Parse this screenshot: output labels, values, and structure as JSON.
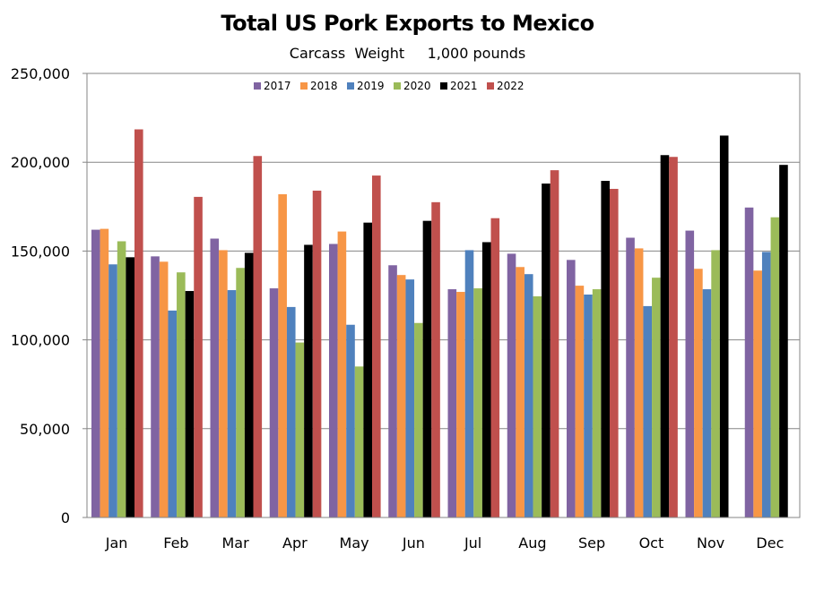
{
  "chart_data": {
    "type": "bar",
    "title": "Total US Pork Exports to Mexico",
    "subtitle": "Carcass  Weight     1,000 pounds",
    "xlabel": "",
    "ylabel": "",
    "ylim": [
      0,
      250000
    ],
    "y_ticks": [
      "0",
      "50,000",
      "100,000",
      "150,000",
      "200,000",
      "250,000"
    ],
    "y_tick_values": [
      0,
      50000,
      100000,
      150000,
      200000,
      250000
    ],
    "grid": true,
    "legend_position": "top-center",
    "categories": [
      "Jan",
      "Feb",
      "Mar",
      "Apr",
      "May",
      "Jun",
      "Jul",
      "Aug",
      "Sep",
      "Oct",
      "Nov",
      "Dec"
    ],
    "series": [
      {
        "name": "2017",
        "color": "#8064a2",
        "values": [
          162000,
          147000,
          157000,
          129000,
          154000,
          142000,
          128500,
          148500,
          145000,
          157500,
          161500,
          174500
        ]
      },
      {
        "name": "2018",
        "color": "#f79646",
        "values": [
          162500,
          144000,
          150500,
          182000,
          161000,
          136500,
          127000,
          141000,
          130500,
          151500,
          140000,
          139000
        ]
      },
      {
        "name": "2019",
        "color": "#4f81bd",
        "values": [
          142500,
          116500,
          128000,
          118500,
          108500,
          134000,
          150500,
          137000,
          125500,
          119000,
          128500,
          149500
        ]
      },
      {
        "name": "2020",
        "color": "#9bbb59",
        "values": [
          155500,
          138000,
          140500,
          98500,
          85000,
          109500,
          129000,
          124500,
          128500,
          135000,
          150500,
          169000
        ]
      },
      {
        "name": "2021",
        "color": "#000000",
        "values": [
          146500,
          127500,
          149000,
          153500,
          166000,
          167000,
          155000,
          188000,
          189500,
          204000,
          215000,
          198500
        ]
      },
      {
        "name": "2022",
        "color": "#c0504d",
        "values": [
          218500,
          180500,
          203500,
          184000,
          192500,
          177500,
          168500,
          195500,
          185000,
          203000,
          null,
          null
        ]
      }
    ]
  }
}
